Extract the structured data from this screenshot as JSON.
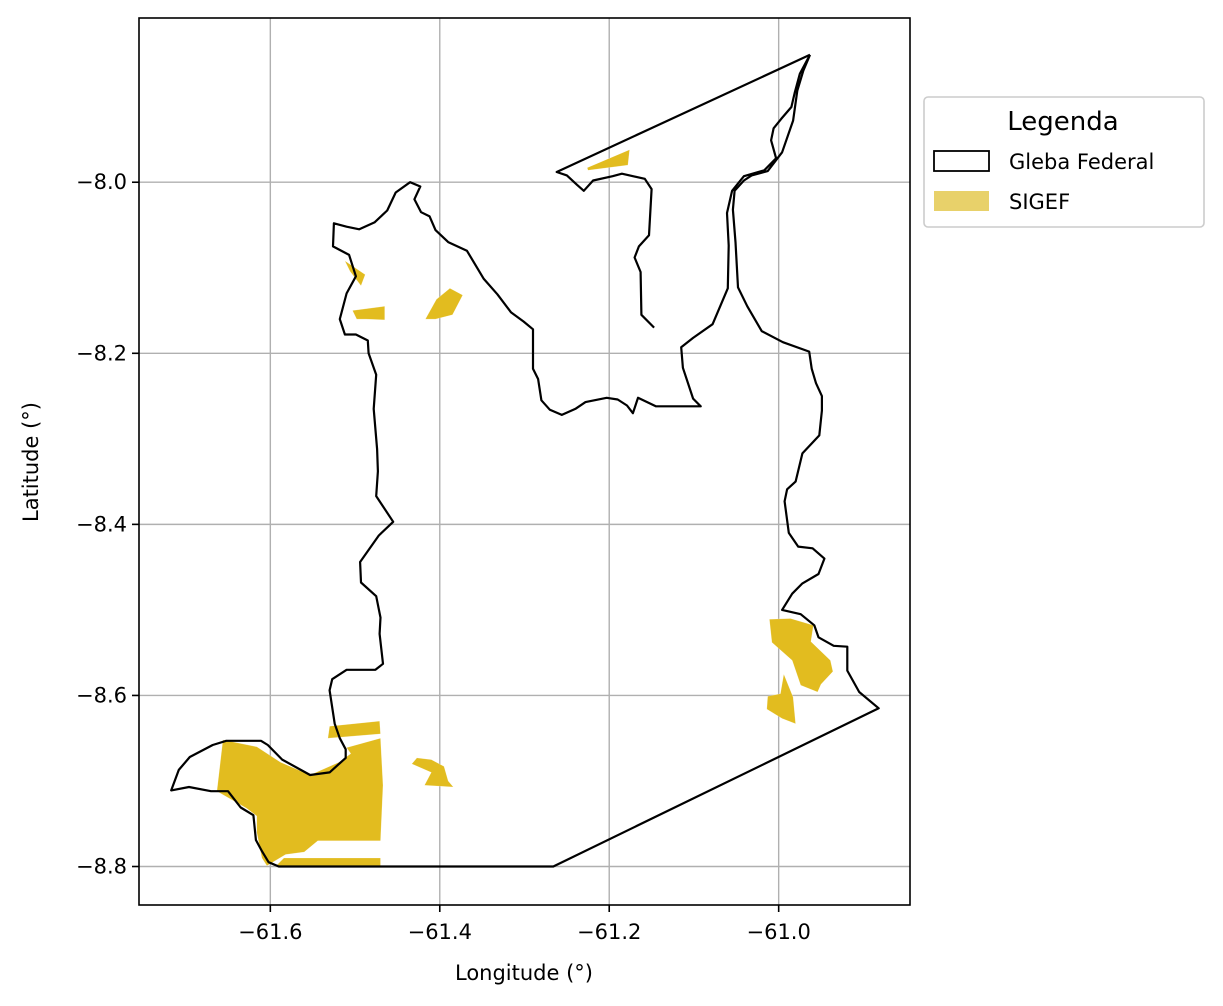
{
  "chart_data": {
    "type": "map",
    "xlabel": "Longitude (°)",
    "ylabel": "Latitude (°)",
    "xlim": [
      -61.755,
      -60.845
    ],
    "ylim": [
      -8.845,
      -7.808
    ],
    "xticks": [
      -61.6,
      -61.4,
      -61.2,
      -61.0
    ],
    "xtick_labels": [
      "−61.6",
      "−61.4",
      "−61.2",
      "−61.0"
    ],
    "yticks": [
      -8.0,
      -8.2,
      -8.4,
      -8.6,
      -8.8
    ],
    "ytick_labels": [
      "−8.0",
      "−8.2",
      "−8.4",
      "−8.6",
      "−8.8"
    ],
    "grid": true,
    "legend": {
      "title": "Legenda",
      "placement": "outside-right-top",
      "items": [
        {
          "label": "Gleba Federal",
          "style": "outline",
          "color": "#000000"
        },
        {
          "label": "SIGEF",
          "style": "fill",
          "color": "#e8d16a"
        }
      ]
    },
    "colors": {
      "gleba_edge": "#000000",
      "sigef_fill": "#e2bc1f",
      "grid": "#b0b0b0"
    },
    "layers": [
      {
        "name": "Gleba Federal",
        "geometry": [
          [
            [
              -60.963,
              -7.851
            ],
            [
              -60.975,
              -7.873
            ],
            [
              -60.981,
              -7.895
            ],
            [
              -60.985,
              -7.912
            ],
            [
              -60.997,
              -7.926
            ],
            [
              -61.006,
              -7.937
            ],
            [
              -61.009,
              -7.951
            ],
            [
              -61.003,
              -7.972
            ],
            [
              -61.017,
              -7.986
            ],
            [
              -61.041,
              -7.993
            ],
            [
              -61.055,
              -8.01
            ],
            [
              -61.061,
              -8.036
            ],
            [
              -61.059,
              -8.074
            ],
            [
              -61.06,
              -8.124
            ],
            [
              -61.078,
              -8.166
            ],
            [
              -61.101,
              -8.182
            ],
            [
              -61.115,
              -8.193
            ],
            [
              -61.113,
              -8.217
            ],
            [
              -61.101,
              -8.253
            ],
            [
              -61.092,
              -8.262
            ],
            [
              -61.145,
              -8.262
            ],
            [
              -61.166,
              -8.252
            ],
            [
              -61.172,
              -8.27
            ],
            [
              -61.179,
              -8.261
            ],
            [
              -61.19,
              -8.254
            ],
            [
              -61.203,
              -8.252
            ],
            [
              -61.228,
              -8.257
            ],
            [
              -61.24,
              -8.265
            ],
            [
              -61.256,
              -8.272
            ],
            [
              -61.27,
              -8.266
            ],
            [
              -61.28,
              -8.255
            ],
            [
              -61.284,
              -8.23
            ],
            [
              -61.29,
              -8.218
            ],
            [
              -61.29,
              -8.172
            ],
            [
              -61.301,
              -8.163
            ],
            [
              -61.316,
              -8.152
            ],
            [
              -61.332,
              -8.131
            ],
            [
              -61.348,
              -8.113
            ],
            [
              -61.368,
              -8.08
            ],
            [
              -61.39,
              -8.07
            ],
            [
              -61.405,
              -8.056
            ],
            [
              -61.412,
              -8.04
            ],
            [
              -61.422,
              -8.035
            ],
            [
              -61.43,
              -8.02
            ],
            [
              -61.423,
              -8.005
            ],
            [
              -61.435,
              -8.0
            ],
            [
              -61.452,
              -8.012
            ],
            [
              -61.462,
              -8.033
            ],
            [
              -61.477,
              -8.047
            ],
            [
              -61.495,
              -8.055
            ],
            [
              -61.51,
              -8.052
            ],
            [
              -61.525,
              -8.048
            ],
            [
              -61.526,
              -8.075
            ],
            [
              -61.507,
              -8.085
            ],
            [
              -61.499,
              -8.11
            ],
            [
              -61.51,
              -8.13
            ],
            [
              -61.518,
              -8.16
            ],
            [
              -61.512,
              -8.178
            ],
            [
              -61.499,
              -8.178
            ],
            [
              -61.485,
              -8.185
            ],
            [
              -61.484,
              -8.2
            ],
            [
              -61.475,
              -8.225
            ],
            [
              -61.478,
              -8.265
            ],
            [
              -61.474,
              -8.312
            ],
            [
              -61.473,
              -8.338
            ],
            [
              -61.475,
              -8.367
            ],
            [
              -61.455,
              -8.397
            ],
            [
              -61.472,
              -8.413
            ],
            [
              -61.494,
              -8.444
            ],
            [
              -61.493,
              -8.468
            ],
            [
              -61.475,
              -8.484
            ],
            [
              -61.47,
              -8.509
            ],
            [
              -61.471,
              -8.528
            ],
            [
              -61.467,
              -8.563
            ],
            [
              -61.476,
              -8.57
            ],
            [
              -61.51,
              -8.57
            ],
            [
              -61.527,
              -8.581
            ],
            [
              -61.53,
              -8.594
            ],
            [
              -61.524,
              -8.633
            ],
            [
              -61.518,
              -8.65
            ],
            [
              -61.511,
              -8.663
            ],
            [
              -61.511,
              -8.673
            ],
            [
              -61.53,
              -8.69
            ],
            [
              -61.553,
              -8.693
            ],
            [
              -61.586,
              -8.675
            ],
            [
              -61.603,
              -8.658
            ],
            [
              -61.611,
              -8.653
            ],
            [
              -61.652,
              -8.653
            ],
            [
              -61.668,
              -8.658
            ],
            [
              -61.695,
              -8.672
            ],
            [
              -61.708,
              -8.687
            ],
            [
              -61.717,
              -8.711
            ],
            [
              -61.696,
              -8.707
            ],
            [
              -61.67,
              -8.712
            ],
            [
              -61.65,
              -8.712
            ],
            [
              -61.635,
              -8.731
            ],
            [
              -61.62,
              -8.74
            ],
            [
              -61.617,
              -8.769
            ],
            [
              -61.61,
              -8.782
            ],
            [
              -61.602,
              -8.795
            ],
            [
              -61.59,
              -8.8
            ],
            [
              -61.5,
              -8.8
            ],
            [
              -61.383,
              -8.8
            ],
            [
              -61.266,
              -8.8
            ],
            [
              -60.882,
              -8.615
            ],
            [
              -60.905,
              -8.596
            ],
            [
              -60.919,
              -8.571
            ],
            [
              -60.919,
              -8.543
            ],
            [
              -60.935,
              -8.542
            ],
            [
              -60.953,
              -8.532
            ],
            [
              -60.958,
              -8.518
            ],
            [
              -60.974,
              -8.505
            ],
            [
              -60.996,
              -8.5
            ],
            [
              -60.984,
              -8.481
            ],
            [
              -60.972,
              -8.469
            ],
            [
              -60.953,
              -8.458
            ],
            [
              -60.946,
              -8.44
            ],
            [
              -60.96,
              -8.428
            ],
            [
              -60.977,
              -8.426
            ],
            [
              -60.988,
              -8.41
            ],
            [
              -60.993,
              -8.373
            ],
            [
              -60.99,
              -8.359
            ],
            [
              -60.98,
              -8.35
            ],
            [
              -60.972,
              -8.317
            ],
            [
              -60.952,
              -8.296
            ],
            [
              -60.949,
              -8.267
            ],
            [
              -60.949,
              -8.25
            ],
            [
              -60.956,
              -8.235
            ],
            [
              -60.961,
              -8.218
            ],
            [
              -60.964,
              -8.198
            ],
            [
              -60.995,
              -8.187
            ],
            [
              -61.02,
              -8.174
            ],
            [
              -61.037,
              -8.145
            ],
            [
              -61.048,
              -8.123
            ],
            [
              -61.051,
              -8.07
            ],
            [
              -61.054,
              -8.032
            ],
            [
              -61.052,
              -8.01
            ],
            [
              -61.041,
              -7.998
            ],
            [
              -61.032,
              -7.992
            ],
            [
              -61.013,
              -7.987
            ],
            [
              -60.996,
              -7.965
            ],
            [
              -60.983,
              -7.928
            ],
            [
              -60.978,
              -7.893
            ],
            [
              -60.971,
              -7.87
            ],
            [
              -60.963,
              -7.851
            ]
          ],
          [
            [
              -60.963,
              -7.851
            ],
            [
              -61.262,
              -7.988
            ],
            [
              -61.25,
              -7.992
            ],
            [
              -61.238,
              -8.003
            ],
            [
              -61.23,
              -8.01
            ],
            [
              -61.219,
              -7.998
            ],
            [
              -61.196,
              -7.993
            ],
            [
              -61.185,
              -7.99
            ],
            [
              -61.158,
              -7.996
            ],
            [
              -61.15,
              -8.008
            ],
            [
              -61.153,
              -8.062
            ],
            [
              -61.165,
              -8.075
            ],
            [
              -61.17,
              -8.088
            ],
            [
              -61.163,
              -8.105
            ],
            [
              -61.162,
              -8.155
            ],
            [
              -61.147,
              -8.17
            ]
          ]
        ]
      },
      {
        "name": "SIGEF",
        "geometry": [
          [
            [
              -61.226,
              -7.983
            ],
            [
              -61.176,
              -7.962
            ],
            [
              -61.178,
              -7.98
            ],
            [
              -61.225,
              -7.986
            ]
          ],
          [
            [
              -61.512,
              -8.092
            ],
            [
              -61.506,
              -8.104
            ],
            [
              -61.493,
              -8.121
            ],
            [
              -61.488,
              -8.108
            ]
          ],
          [
            [
              -61.487,
              -8.16
            ],
            [
              -61.465,
              -8.161
            ],
            [
              -61.465,
              -8.145
            ],
            [
              -61.503,
              -8.15
            ],
            [
              -61.498,
              -8.16
            ]
          ],
          [
            [
              -61.404,
              -8.137
            ],
            [
              -61.388,
              -8.124
            ],
            [
              -61.373,
              -8.132
            ],
            [
              -61.385,
              -8.155
            ],
            [
              -61.405,
              -8.16
            ],
            [
              -61.417,
              -8.16
            ]
          ],
          [
            [
              -61.53,
              -8.636
            ],
            [
              -61.471,
              -8.63
            ],
            [
              -61.47,
              -8.645
            ],
            [
              -61.532,
              -8.65
            ]
          ],
          [
            [
              -61.656,
              -8.652
            ],
            [
              -61.616,
              -8.66
            ],
            [
              -61.588,
              -8.678
            ],
            [
              -61.553,
              -8.693
            ],
            [
              -61.519,
              -8.678
            ],
            [
              -61.505,
              -8.668
            ],
            [
              -61.51,
              -8.661
            ],
            [
              -61.47,
              -8.65
            ],
            [
              -61.467,
              -8.705
            ],
            [
              -61.47,
              -8.77
            ],
            [
              -61.544,
              -8.77
            ],
            [
              -61.56,
              -8.783
            ],
            [
              -61.582,
              -8.786
            ],
            [
              -61.604,
              -8.799
            ],
            [
              -61.61,
              -8.79
            ],
            [
              -61.616,
              -8.76
            ],
            [
              -61.616,
              -8.741
            ],
            [
              -61.628,
              -8.732
            ],
            [
              -61.663,
              -8.712
            ]
          ],
          [
            [
              -61.47,
              -8.79
            ],
            [
              -61.584,
              -8.79
            ],
            [
              -61.594,
              -8.8
            ],
            [
              -61.47,
              -8.8
            ]
          ],
          [
            [
              -61.427,
              -8.673
            ],
            [
              -61.41,
              -8.675
            ],
            [
              -61.395,
              -8.683
            ],
            [
              -61.39,
              -8.7
            ],
            [
              -61.384,
              -8.707
            ],
            [
              -61.418,
              -8.705
            ],
            [
              -61.41,
              -8.69
            ],
            [
              -61.433,
              -8.68
            ]
          ],
          [
            [
              -61.008,
              -8.538
            ],
            [
              -60.984,
              -8.559
            ],
            [
              -60.974,
              -8.588
            ],
            [
              -60.954,
              -8.596
            ],
            [
              -60.95,
              -8.587
            ],
            [
              -60.936,
              -8.572
            ],
            [
              -60.939,
              -8.559
            ],
            [
              -60.962,
              -8.537
            ],
            [
              -60.959,
              -8.518
            ],
            [
              -60.986,
              -8.51
            ],
            [
              -61.011,
              -8.511
            ]
          ],
          [
            [
              -60.994,
              -8.575
            ],
            [
              -60.983,
              -8.602
            ],
            [
              -60.98,
              -8.633
            ],
            [
              -60.996,
              -8.627
            ],
            [
              -61.014,
              -8.616
            ],
            [
              -61.013,
              -8.601
            ],
            [
              -60.998,
              -8.598
            ]
          ]
        ]
      }
    ]
  }
}
